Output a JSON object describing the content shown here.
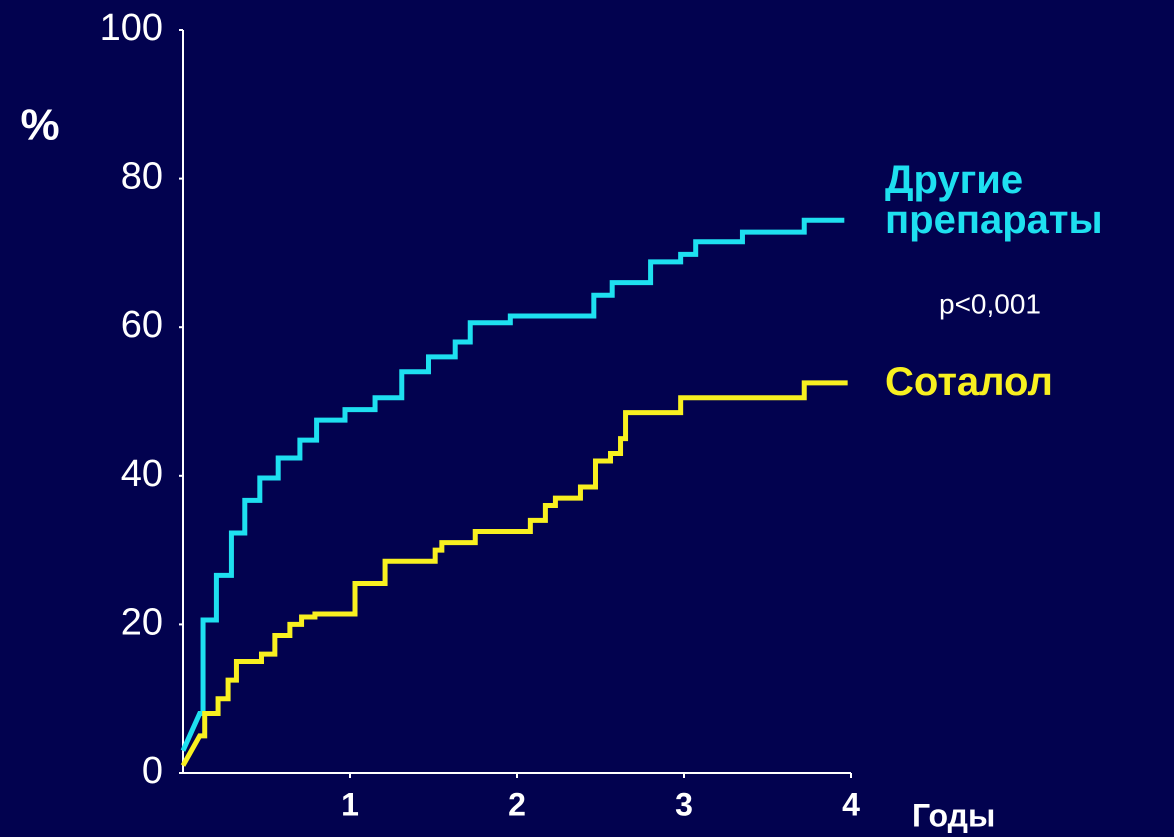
{
  "chart_data": {
    "type": "step",
    "ylabel": "%",
    "xlabel": "Годы",
    "annotation": "p<0,001",
    "xlim": [
      0,
      4
    ],
    "xticks": [
      1,
      2,
      3,
      4
    ],
    "ylim": [
      0,
      100
    ],
    "yticks": [
      0,
      20,
      40,
      60,
      80,
      100
    ],
    "series": [
      {
        "name": "Другие препараты",
        "color": "#1ee0f0",
        "x": [
          0,
          0.1,
          0.12,
          0.2,
          0.29,
          0.37,
          0.46,
          0.57,
          0.7,
          0.8,
          0.97,
          1.15,
          1.31,
          1.47,
          1.63,
          1.72,
          1.96,
          2.46,
          2.57,
          2.8,
          2.98,
          3.07,
          3.35,
          3.72,
          3.96
        ],
        "values": [
          3,
          8,
          20.6,
          26.6,
          32.3,
          36.7,
          39.7,
          42.4,
          44.8,
          47.5,
          48.9,
          50.5,
          54,
          56,
          58,
          60.6,
          61.5,
          64.3,
          66,
          68.8,
          69.8,
          71.5,
          72.8,
          74.4,
          74.4
        ]
      },
      {
        "name": "Соталол",
        "color": "#f8f020",
        "x": [
          0,
          0.1,
          0.13,
          0.21,
          0.27,
          0.32,
          0.47,
          0.55,
          0.64,
          0.71,
          0.79,
          1.03,
          1.21,
          1.51,
          1.55,
          1.75,
          2.08,
          2.17,
          2.23,
          2.38,
          2.47,
          2.56,
          2.62,
          2.65,
          2.98,
          3.72,
          3.98
        ],
        "values": [
          1,
          5,
          8,
          10,
          12.5,
          15,
          16,
          18.5,
          20,
          21,
          21.4,
          25.5,
          28.5,
          30,
          31,
          32.5,
          34,
          36,
          37,
          38.5,
          42,
          43,
          45,
          48.5,
          50.5,
          52.5,
          52.5
        ]
      }
    ]
  }
}
